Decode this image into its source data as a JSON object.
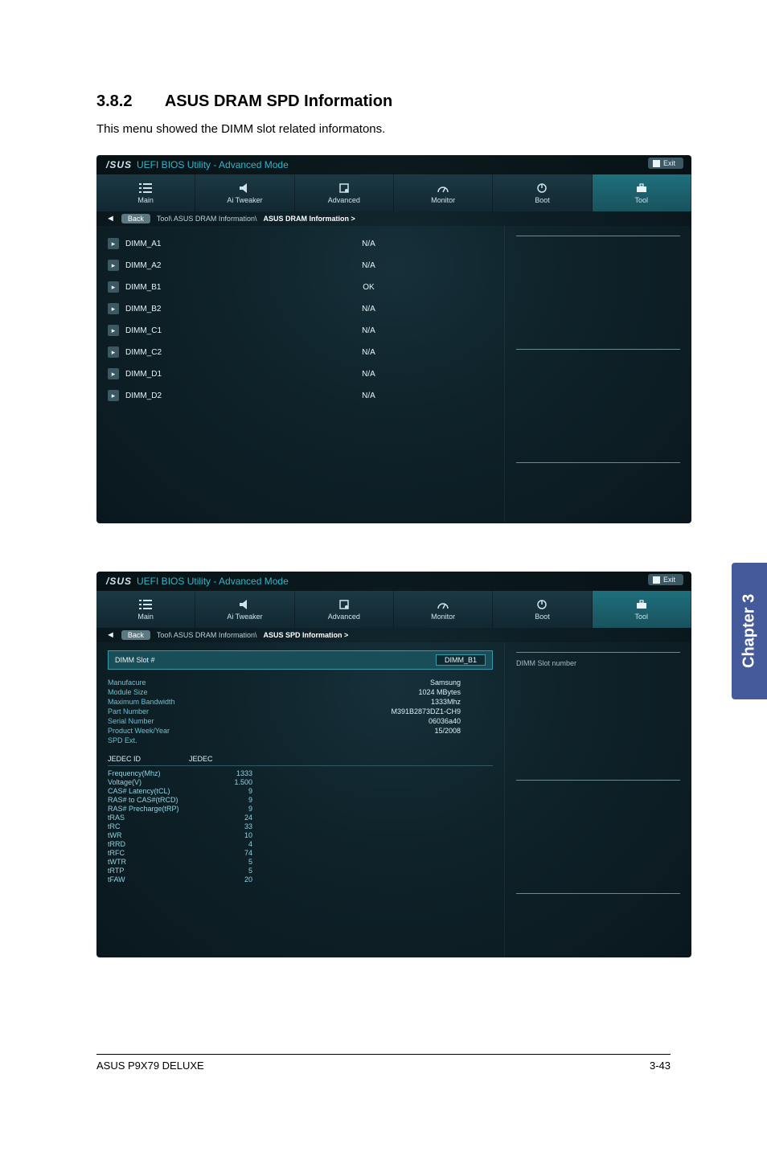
{
  "heading": {
    "number": "3.8.2",
    "title": "ASUS DRAM SPD Information"
  },
  "description": "This menu showed the DIMM slot related informatons.",
  "bios": {
    "logo": "/SUS",
    "title": "UEFI BIOS Utility - Advanced Mode",
    "exit_label": "Exit",
    "tabs": [
      {
        "label": "Main"
      },
      {
        "label": "Ai  Tweaker"
      },
      {
        "label": "Advanced"
      },
      {
        "label": "Monitor"
      },
      {
        "label": "Boot"
      },
      {
        "label": "Tool"
      }
    ],
    "back_label": "Back"
  },
  "screen1": {
    "breadcrumb_prefix": "Tool\\  ASUS DRAM Information\\",
    "breadcrumb_current": " ASUS DRAM Information  >",
    "rows": [
      {
        "label": "DIMM_A1",
        "value": "N/A"
      },
      {
        "label": "DIMM_A2",
        "value": "N/A"
      },
      {
        "label": "DIMM_B1",
        "value": "OK"
      },
      {
        "label": "DIMM_B2",
        "value": "N/A"
      },
      {
        "label": "DIMM_C1",
        "value": "N/A"
      },
      {
        "label": "DIMM_C2",
        "value": "N/A"
      },
      {
        "label": "DIMM_D1",
        "value": "N/A"
      },
      {
        "label": "DIMM_D2",
        "value": "N/A"
      }
    ]
  },
  "screen2": {
    "breadcrumb_prefix": "Tool\\  ASUS DRAM Information\\",
    "breadcrumb_current": " ASUS SPD Information  >",
    "slot_label": "DIMM Slot #",
    "slot_value": "DIMM_B1",
    "right_label": "DIMM Slot number",
    "info": [
      {
        "k": "Manufacure",
        "v": "Samsung"
      },
      {
        "k": "Module Size",
        "v": "1024 MBytes"
      },
      {
        "k": "Maximum Bandwidth",
        "v": "1333Mhz"
      },
      {
        "k": "Part Number",
        "v": "M391B2873DZ1-CH9"
      },
      {
        "k": "Serial Number",
        "v": "06036a40"
      },
      {
        "k": "Product Week/Year",
        "v": "15/2008"
      },
      {
        "k": "SPD Ext.",
        "v": ""
      }
    ],
    "jedec_id": "JEDEC  ID",
    "jedec_col": "JEDEC",
    "timings": [
      {
        "k": "Frequency(Mhz)",
        "v": "1333"
      },
      {
        "k": "Voltage(V)",
        "v": "1.500"
      },
      {
        "k": "CAS# Latency(tCL)",
        "v": "9"
      },
      {
        "k": "RAS#  to  CAS#(tRCD)",
        "v": "9"
      },
      {
        "k": "RAS# Precharge(tRP)",
        "v": "9"
      },
      {
        "k": "tRAS",
        "v": "24"
      },
      {
        "k": "tRC",
        "v": "33"
      },
      {
        "k": "tWR",
        "v": "10"
      },
      {
        "k": "tRRD",
        "v": "4"
      },
      {
        "k": "tRFC",
        "v": "74"
      },
      {
        "k": "tWTR",
        "v": "5"
      },
      {
        "k": "tRTP",
        "v": "5"
      },
      {
        "k": "tFAW",
        "v": "20"
      }
    ]
  },
  "chapter_label": "Chapter 3",
  "footer": {
    "left": "ASUS P9X79 DELUXE",
    "right": "3-43"
  },
  "colors": {
    "accent": "#2fb7c9",
    "bg_dark": "#0a181e",
    "tab_active": "#1f6f7d",
    "chapter": "#455a9a"
  }
}
